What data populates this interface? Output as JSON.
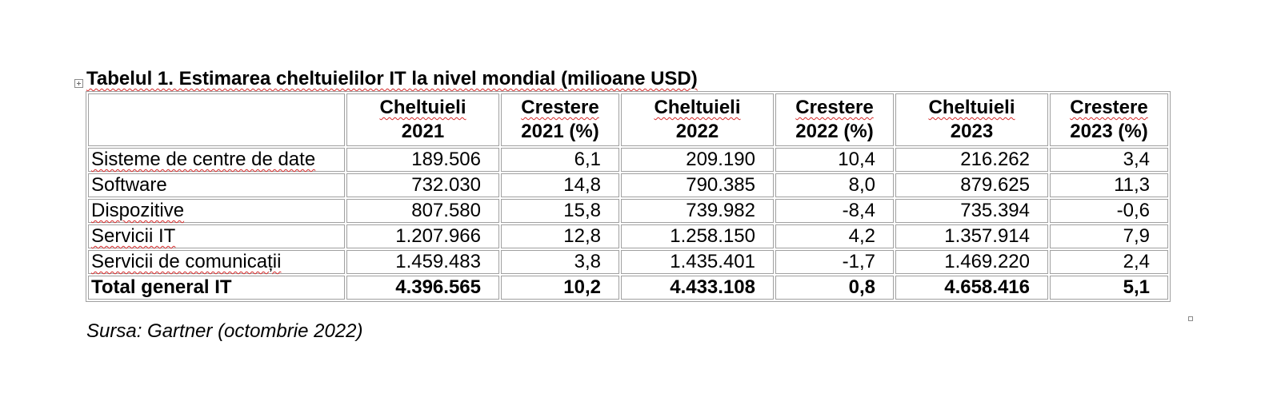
{
  "caption": {
    "title": "Tabelul 1. Estimarea cheltuielilor IT la nivel mondial (milioane USD)"
  },
  "table": {
    "headers": [
      [
        "",
        ""
      ],
      [
        "Cheltuieli",
        "2021"
      ],
      [
        "Crestere",
        "2021 (%)"
      ],
      [
        "Cheltuieli",
        "2022"
      ],
      [
        "Crestere",
        "2022 (%)"
      ],
      [
        "Cheltuieli",
        "2023"
      ],
      [
        "Crestere",
        "2023 (%)"
      ]
    ],
    "rows": [
      [
        "Sisteme de centre de date",
        "189.506",
        "6,1",
        "209.190",
        "10,4",
        "216.262",
        "3,4"
      ],
      [
        "Software",
        "732.030",
        "14,8",
        "790.385",
        "8,0",
        "879.625",
        "11,3"
      ],
      [
        "Dispozitive",
        "807.580",
        "15,8",
        "739.982",
        "-8,4",
        "735.394",
        "-0,6"
      ],
      [
        "Servicii IT",
        "1.207.966",
        "12,8",
        "1.258.150",
        "4,2",
        "1.357.914",
        "7,9"
      ],
      [
        "Servicii de comunicații",
        "1.459.483",
        "3,8",
        "1.435.401",
        "-1,7",
        "1.469.220",
        "2,4"
      ],
      [
        "Total general IT",
        "4.396.565",
        "10,2",
        "4.433.108",
        "0,8",
        "4.658.416",
        "5,1"
      ]
    ]
  },
  "source": {
    "text": "Sursa: Gartner (octombrie 2022)"
  }
}
